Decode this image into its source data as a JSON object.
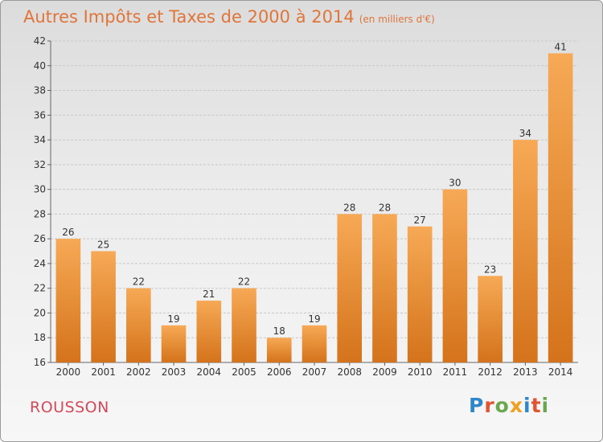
{
  "header": {
    "title": "Autres Impôts et Taxes de 2000 à 2014",
    "subtitle": "(en milliers d'€)"
  },
  "footer": {
    "commune": "ROUSSON",
    "brand": "Proxiti"
  },
  "colors": {
    "bar_light": "#f7a955",
    "bar_dark": "#d4731b",
    "title": "#e0753a",
    "commune": "#d24a5a",
    "brand_letters": [
      "#2f86c8",
      "#e05530",
      "#6aa84f",
      "#f0a020",
      "#2f86c8",
      "#e05530",
      "#6aa84f"
    ]
  },
  "chart_data": {
    "type": "bar",
    "title": "Autres Impôts et Taxes de 2000 à 2014",
    "subtitle": "(en milliers d'€)",
    "xlabel": "",
    "ylabel": "",
    "categories": [
      "2000",
      "2001",
      "2002",
      "2003",
      "2004",
      "2005",
      "2006",
      "2007",
      "2008",
      "2009",
      "2010",
      "2011",
      "2012",
      "2013",
      "2014"
    ],
    "values": [
      26,
      25,
      22,
      19,
      21,
      22,
      18,
      19,
      28,
      28,
      27,
      30,
      23,
      34,
      41
    ],
    "ylim": [
      16,
      42
    ],
    "yticks": [
      16,
      18,
      20,
      22,
      24,
      26,
      28,
      30,
      32,
      34,
      36,
      38,
      40,
      42
    ],
    "grid": true,
    "legend": "none"
  }
}
